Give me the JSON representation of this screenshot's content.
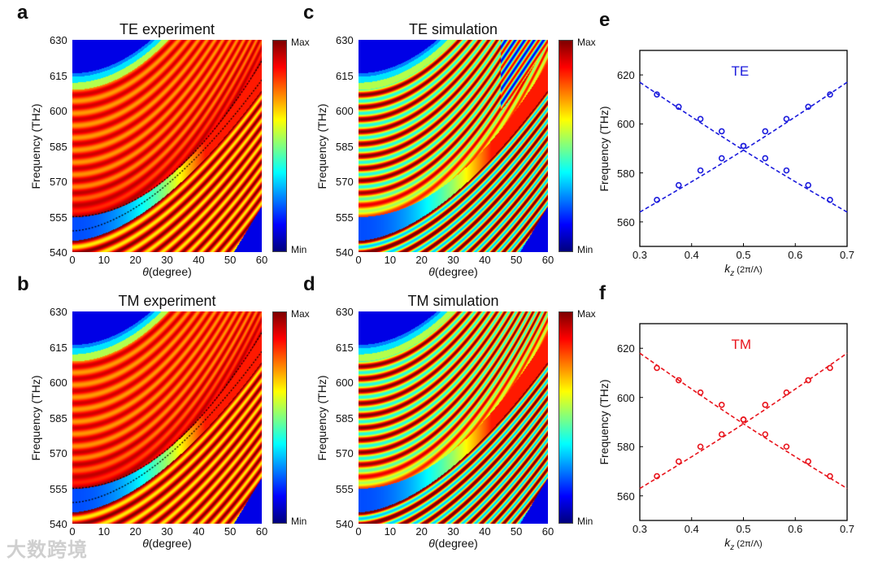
{
  "panels": [
    {
      "letter": "a",
      "title": "TE experiment"
    },
    {
      "letter": "c",
      "title": "TE simulation"
    },
    {
      "letter": "b",
      "title": "TM experiment"
    },
    {
      "letter": "d",
      "title": "TM simulation"
    }
  ],
  "heatmap_axes": {
    "ylabel": "Frequency (THz)",
    "xlabel_sym": "θ",
    "xlabel": "(degree)",
    "yticks": [
      "630",
      "615",
      "600",
      "585",
      "570",
      "555",
      "540"
    ],
    "xticks": [
      "0",
      "10",
      "20",
      "30",
      "40",
      "50",
      "60"
    ],
    "colorbar_max": "Max",
    "colorbar_min": "Min"
  },
  "watermark": "大数跨境",
  "colors": {
    "te": "#1a1adc",
    "tm": "#e8141c"
  },
  "chart_data": [
    {
      "type": "heatmap",
      "panel": "a",
      "title": "TE experiment",
      "xlabel": "θ (degree)",
      "ylabel": "Frequency (THz)",
      "xlim": [
        0,
        60
      ],
      "ylim": [
        540,
        630
      ],
      "colorbar": [
        "Min",
        "Max"
      ],
      "colormap": "jet"
    },
    {
      "type": "heatmap",
      "panel": "c",
      "title": "TE simulation",
      "xlabel": "θ (degree)",
      "ylabel": "Frequency (THz)",
      "xlim": [
        0,
        60
      ],
      "ylim": [
        540,
        630
      ],
      "colorbar": [
        "Min",
        "Max"
      ],
      "colormap": "jet"
    },
    {
      "type": "heatmap",
      "panel": "b",
      "title": "TM experiment",
      "xlabel": "θ (degree)",
      "ylabel": "Frequency (THz)",
      "xlim": [
        0,
        60
      ],
      "ylim": [
        540,
        630
      ],
      "colorbar": [
        "Min",
        "Max"
      ],
      "colormap": "jet"
    },
    {
      "type": "heatmap",
      "panel": "d",
      "title": "TM simulation",
      "xlabel": "θ (degree)",
      "ylabel": "Frequency (THz)",
      "xlim": [
        0,
        60
      ],
      "ylim": [
        540,
        630
      ],
      "colorbar": [
        "Min",
        "Max"
      ],
      "colormap": "jet"
    },
    {
      "type": "scatter",
      "panel": "e",
      "label": "TE",
      "letter": "e",
      "xlabel": "k",
      "xlabel_sub": "z",
      "xlabel_unit": "(2π/Λ)",
      "ylabel": "Frequency (THz)",
      "xlim": [
        0.3,
        0.7
      ],
      "ylim": [
        550,
        630
      ],
      "xticks": [
        "0.3",
        "0.4",
        "0.5",
        "0.6",
        "0.7"
      ],
      "yticks": [
        "560",
        "580",
        "600",
        "620"
      ],
      "x": [
        0.333,
        0.375,
        0.417,
        0.458,
        0.5,
        0.542,
        0.583,
        0.625,
        0.667
      ],
      "series": [
        {
          "name": "descending",
          "values": [
            612,
            607,
            602,
            597,
            591,
            586,
            581,
            575,
            569
          ]
        },
        {
          "name": "ascending",
          "values": [
            569,
            575,
            581,
            586,
            591,
            597,
            602,
            607,
            612
          ]
        }
      ],
      "fit_lines": [
        {
          "x": [
            0.3,
            0.7
          ],
          "y": [
            617,
            564
          ]
        },
        {
          "x": [
            0.3,
            0.7
          ],
          "y": [
            564,
            617
          ]
        }
      ]
    },
    {
      "type": "scatter",
      "panel": "f",
      "label": "TM",
      "letter": "f",
      "xlabel": "k",
      "xlabel_sub": "z",
      "xlabel_unit": "(2π/Λ)",
      "ylabel": "Frequency (THz)",
      "xlim": [
        0.3,
        0.7
      ],
      "ylim": [
        550,
        630
      ],
      "xticks": [
        "0.3",
        "0.4",
        "0.5",
        "0.6",
        "0.7"
      ],
      "yticks": [
        "560",
        "580",
        "600",
        "620"
      ],
      "x": [
        0.333,
        0.375,
        0.417,
        0.458,
        0.5,
        0.542,
        0.583,
        0.625,
        0.667
      ],
      "series": [
        {
          "name": "descending",
          "values": [
            612,
            607,
            602,
            597,
            591,
            585,
            580,
            574,
            568
          ]
        },
        {
          "name": "ascending",
          "values": [
            568,
            574,
            580,
            585,
            591,
            597,
            602,
            607,
            612
          ]
        }
      ],
      "fit_lines": [
        {
          "x": [
            0.3,
            0.7
          ],
          "y": [
            618,
            563
          ]
        },
        {
          "x": [
            0.3,
            0.7
          ],
          "y": [
            563,
            618
          ]
        }
      ]
    }
  ]
}
